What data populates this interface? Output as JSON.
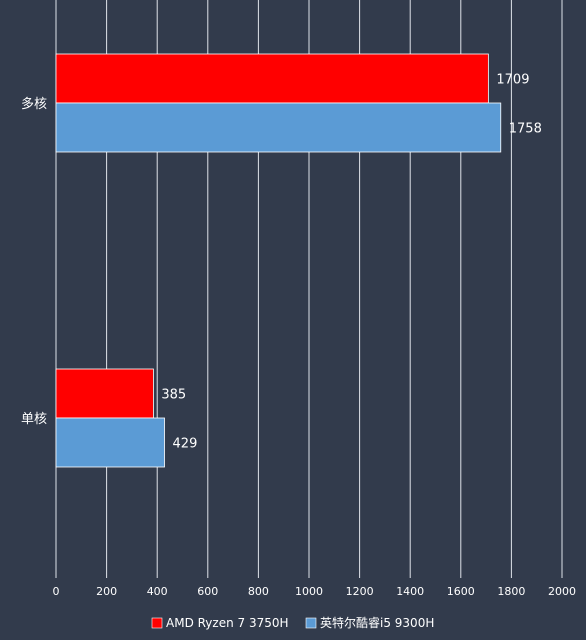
{
  "chart_data": {
    "type": "bar",
    "orientation": "horizontal",
    "categories": [
      "多核",
      "单核"
    ],
    "series": [
      {
        "name": "AMD Ryzen 7 3750H",
        "values": [
          1709,
          385
        ],
        "color": "#ff0000"
      },
      {
        "name": "英特尔酷睿i5 9300H",
        "values": [
          1758,
          429
        ],
        "color": "#5b9bd5"
      }
    ],
    "xlim": [
      0,
      2000
    ],
    "x_ticks": [
      0,
      200,
      400,
      600,
      800,
      1000,
      1200,
      1400,
      1600,
      1800,
      2000
    ],
    "grid": true,
    "legend_position": "bottom",
    "title": "",
    "xlabel": "",
    "ylabel": ""
  },
  "colors": {
    "background": "#323b4c",
    "grid": "#dfe3ea",
    "text": "#ffffff"
  }
}
